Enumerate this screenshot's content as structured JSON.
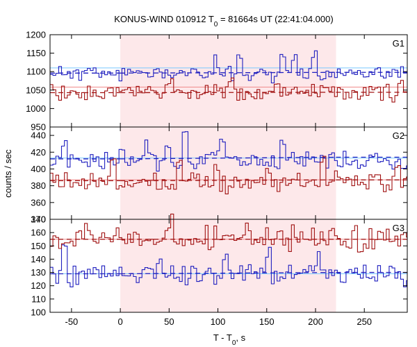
{
  "chart_data": {
    "type": "line",
    "title_main": "KONUS-WIND 010912 T",
    "title_sub": "0",
    "title_rest": " = 81664s UT (22:41:04.000)",
    "ylabel": "counts / sec",
    "xlabel_main": "T - T",
    "xlabel_sub": "0",
    "xlabel_rest": ", s",
    "xlim": [
      -72,
      294
    ],
    "xticks": [
      -50,
      0,
      50,
      100,
      150,
      200,
      250
    ],
    "interval": [
      0,
      221
    ],
    "interval_color": "#fde8ea",
    "colors": {
      "blue": "#1f1fbf",
      "red": "#a01010",
      "bg_blue": "#78c8ff",
      "bg_red": "#f08a8a"
    },
    "panels": [
      {
        "label": "G1",
        "ylim": [
          950,
          1200
        ],
        "yticks": [
          950,
          1000,
          1050,
          1100,
          1150,
          1200
        ],
        "blue": {
          "level": 1096,
          "seed": 11,
          "amp": 14,
          "spikes": [
            [
              98,
              36
            ],
            [
              120,
              30
            ],
            [
              165,
              38
            ],
            [
              176,
              40
            ],
            [
              196,
              50
            ]
          ],
          "bg": 1096,
          "bg_after": 1098
        },
        "red": {
          "level": 1043,
          "seed": 29,
          "amp": 15,
          "spikes": [
            [
              50,
              30
            ],
            [
              112,
              28
            ],
            [
              158,
              22
            ],
            [
              210,
              24
            ],
            [
              285,
              22
            ]
          ],
          "bg": 1043,
          "bg_after": 1044
        },
        "fits": {
          "blue_fit": 1110,
          "red_fit": 1058
        }
      },
      {
        "label": "G2",
        "ylim": [
          340,
          450
        ],
        "yticks": [
          340,
          360,
          380,
          400,
          420,
          440
        ],
        "blue": {
          "level": 411,
          "seed": 7,
          "amp": 8,
          "spikes": [
            [
              -58,
              24
            ],
            [
              28,
              20
            ],
            [
              48,
              24
            ],
            [
              64,
              28
            ],
            [
              103,
              20
            ],
            [
              164,
              22
            ]
          ],
          "bg": 412,
          "bg_after": 414
        },
        "red": {
          "level": 385,
          "seed": 43,
          "amp": 8,
          "spikes": [
            [
              -10,
              15
            ],
            [
              58,
              24
            ],
            [
              98,
              18
            ],
            [
              150,
              16
            ],
            [
              205,
              22
            ],
            [
              282,
              14
            ]
          ],
          "bg": 386,
          "bg_after": 387
        },
        "fits": {
          "blue_fit": 413,
          "red_fit": 387
        }
      },
      {
        "label": "G3",
        "ylim": [
          100,
          170
        ],
        "yticks": [
          100,
          110,
          120,
          130,
          140,
          150,
          160,
          170
        ],
        "blue": {
          "level": 129,
          "seed": 19,
          "amp": 6,
          "spikes": [
            [
              -58,
              16
            ],
            [
              39,
              14
            ],
            [
              105,
              14
            ],
            [
              150,
              14
            ],
            [
              200,
              14
            ]
          ],
          "bg": 129,
          "bg_after": 130
        },
        "red": {
          "level": 155,
          "seed": 53,
          "amp": 6,
          "spikes": [
            [
              -35,
              14
            ],
            [
              50,
              16
            ],
            [
              130,
              12
            ],
            [
              178,
              10
            ]
          ],
          "bg": 155,
          "bg_after": 155
        },
        "fits": {
          "blue_fit": 129,
          "red_fit": 155
        }
      }
    ]
  }
}
